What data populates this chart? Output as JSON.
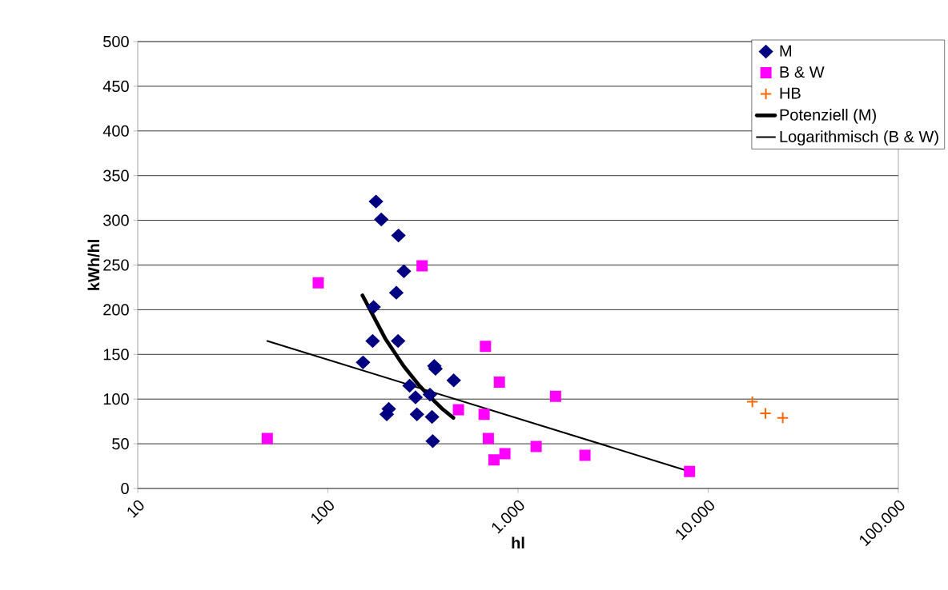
{
  "chart_data": {
    "type": "scatter",
    "xlabel": "hl",
    "ylabel": "kWh/hl",
    "log": "x",
    "grid": "y",
    "legend": "top right",
    "xlim": [
      10,
      100000
    ],
    "ylim": [
      0,
      500
    ],
    "xticks": [
      10,
      100,
      {
        "value": 1000,
        "label": "1.000"
      },
      {
        "value": 10000,
        "label": "10.000"
      },
      {
        "value": 100000,
        "label": "100.000"
      }
    ],
    "yticks": [
      0,
      50,
      100,
      150,
      200,
      250,
      300,
      350,
      400,
      450,
      500
    ],
    "series": [
      {
        "name": "M",
        "marker": "diamond",
        "color": "#000080",
        "x": [
          179,
          191,
          235,
          251,
          229,
          174,
          172,
          234,
          153,
          363,
          368,
          459,
          269,
          289,
          344,
          209,
          204,
          294,
          353,
          356
        ],
        "values": [
          321,
          301,
          283,
          243,
          219,
          203,
          165,
          165,
          141,
          137,
          134,
          121,
          115,
          102,
          105,
          89,
          83,
          83,
          80,
          53
        ]
      },
      {
        "name": "B & W",
        "marker": "square",
        "color": "#ff00ff",
        "x": [
          48,
          89,
          313,
          486,
          674,
          798,
          1575,
          663,
          698,
          853,
          747,
          1245,
          2248,
          7980
        ],
        "values": [
          56,
          230,
          249,
          88,
          159,
          119,
          103,
          83,
          56,
          39,
          32,
          47,
          37,
          19
        ]
      },
      {
        "name": "HB",
        "marker": "cross",
        "color": "#ff6600",
        "x": [
          17070,
          20000,
          24660
        ],
        "values": [
          97,
          84,
          79
        ]
      },
      {
        "name": "Potenziell (M)",
        "type": "line",
        "marker": "none",
        "color": "#000000",
        "x": [
          152,
          200,
          250,
          300,
          350,
          400,
          457
        ],
        "values": [
          216,
          168,
          137,
          116,
          101,
          89,
          79
        ]
      },
      {
        "name": "Logarithmisch (B & W)",
        "type": "line",
        "marker": "none",
        "color": "#000000",
        "x": [
          48,
          7980
        ],
        "values": [
          165,
          19
        ]
      }
    ]
  }
}
